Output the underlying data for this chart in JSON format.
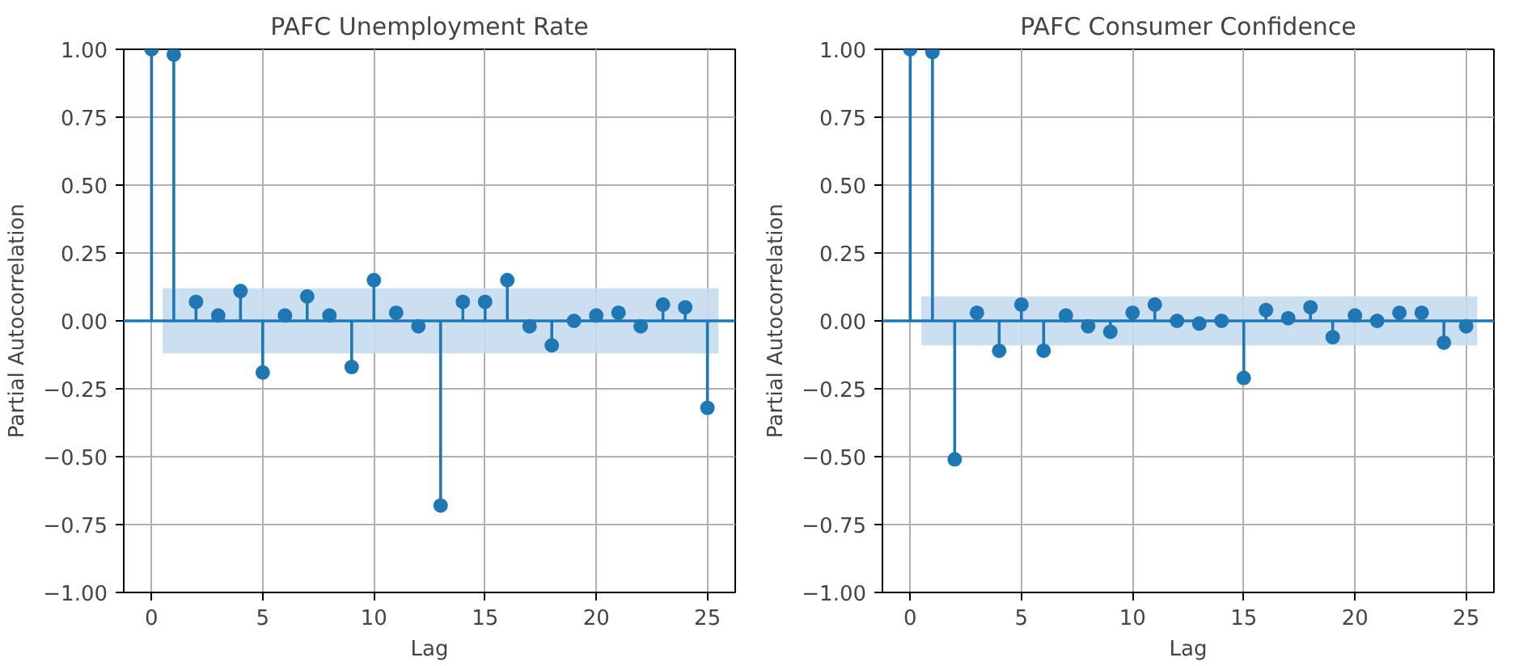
{
  "chart_data": [
    {
      "type": "lollipop",
      "title": "PAFC Unemployment Rate",
      "xlabel": "Lag",
      "ylabel": "Partial Autocorrelation",
      "x": [
        0,
        1,
        2,
        3,
        4,
        5,
        6,
        7,
        8,
        9,
        10,
        11,
        12,
        13,
        14,
        15,
        16,
        17,
        18,
        19,
        20,
        21,
        22,
        23,
        24,
        25
      ],
      "series": [
        {
          "color": "#1f77b4",
          "values": [
            1,
            0.98,
            0.07,
            0.02,
            0.11,
            -0.19,
            0.02,
            0.09,
            0.02,
            -0.17,
            0.15,
            0.03,
            -0.02,
            -0.68,
            0.07,
            0.07,
            0.15,
            -0.02,
            -0.09,
            0,
            0.02,
            0.03,
            -0.02,
            0.06,
            0.05,
            -0.32
          ]
        }
      ],
      "bands": [
        {
          "axis": "y",
          "from": -0.12,
          "to": 0.12,
          "color": "#c6dbef"
        }
      ],
      "ref_lines": [
        {
          "axis": "y",
          "value": 0,
          "color": "#1f77b4"
        }
      ],
      "xlim": [
        -1.25,
        26.25
      ],
      "ylim": [
        -1,
        1
      ],
      "xticks": [
        0,
        5,
        10,
        15,
        20,
        25
      ],
      "yticks": [
        {
          "value": -1,
          "label": "−1.00"
        },
        {
          "value": -0.75,
          "label": "−0.75"
        },
        {
          "value": -0.5,
          "label": "−0.50"
        },
        {
          "value": -0.25,
          "label": "−0.25"
        },
        {
          "value": 0,
          "label": "0.00"
        },
        {
          "value": 0.25,
          "label": "0.25"
        },
        {
          "value": 0.5,
          "label": "0.50"
        },
        {
          "value": 0.75,
          "label": "0.75"
        },
        {
          "value": 1,
          "label": "1.00"
        }
      ],
      "grid": true,
      "marker": "circle"
    },
    {
      "type": "lollipop",
      "title": "PAFC Consumer Confidence",
      "xlabel": "Lag",
      "ylabel": "Partial Autocorrelation",
      "x": [
        0,
        1,
        2,
        3,
        4,
        5,
        6,
        7,
        8,
        9,
        10,
        11,
        12,
        13,
        14,
        15,
        16,
        17,
        18,
        19,
        20,
        21,
        22,
        23,
        24,
        25
      ],
      "series": [
        {
          "color": "#1f77b4",
          "values": [
            1,
            0.99,
            -0.51,
            0.03,
            -0.11,
            0.06,
            -0.11,
            0.02,
            -0.02,
            -0.04,
            0.03,
            0.06,
            0,
            -0.01,
            0,
            -0.21,
            0.04,
            0.01,
            0.05,
            -0.06,
            0.02,
            0,
            0.03,
            0.03,
            -0.08,
            -0.02
          ]
        }
      ],
      "bands": [
        {
          "axis": "y",
          "from": -0.09,
          "to": 0.09,
          "color": "#c6dbef"
        }
      ],
      "ref_lines": [
        {
          "axis": "y",
          "value": 0,
          "color": "#1f77b4"
        }
      ],
      "xlim": [
        -1.25,
        26.25
      ],
      "ylim": [
        -1,
        1
      ],
      "xticks": [
        0,
        5,
        10,
        15,
        20,
        25
      ],
      "yticks": [
        {
          "value": -1,
          "label": "−1.00"
        },
        {
          "value": -0.75,
          "label": "−0.75"
        },
        {
          "value": -0.5,
          "label": "−0.50"
        },
        {
          "value": -0.25,
          "label": "−0.25"
        },
        {
          "value": 0,
          "label": "0.00"
        },
        {
          "value": 0.25,
          "label": "0.25"
        },
        {
          "value": 0.5,
          "label": "0.50"
        },
        {
          "value": 0.75,
          "label": "0.75"
        },
        {
          "value": 1,
          "label": "1.00"
        }
      ],
      "grid": true,
      "marker": "circle"
    }
  ]
}
